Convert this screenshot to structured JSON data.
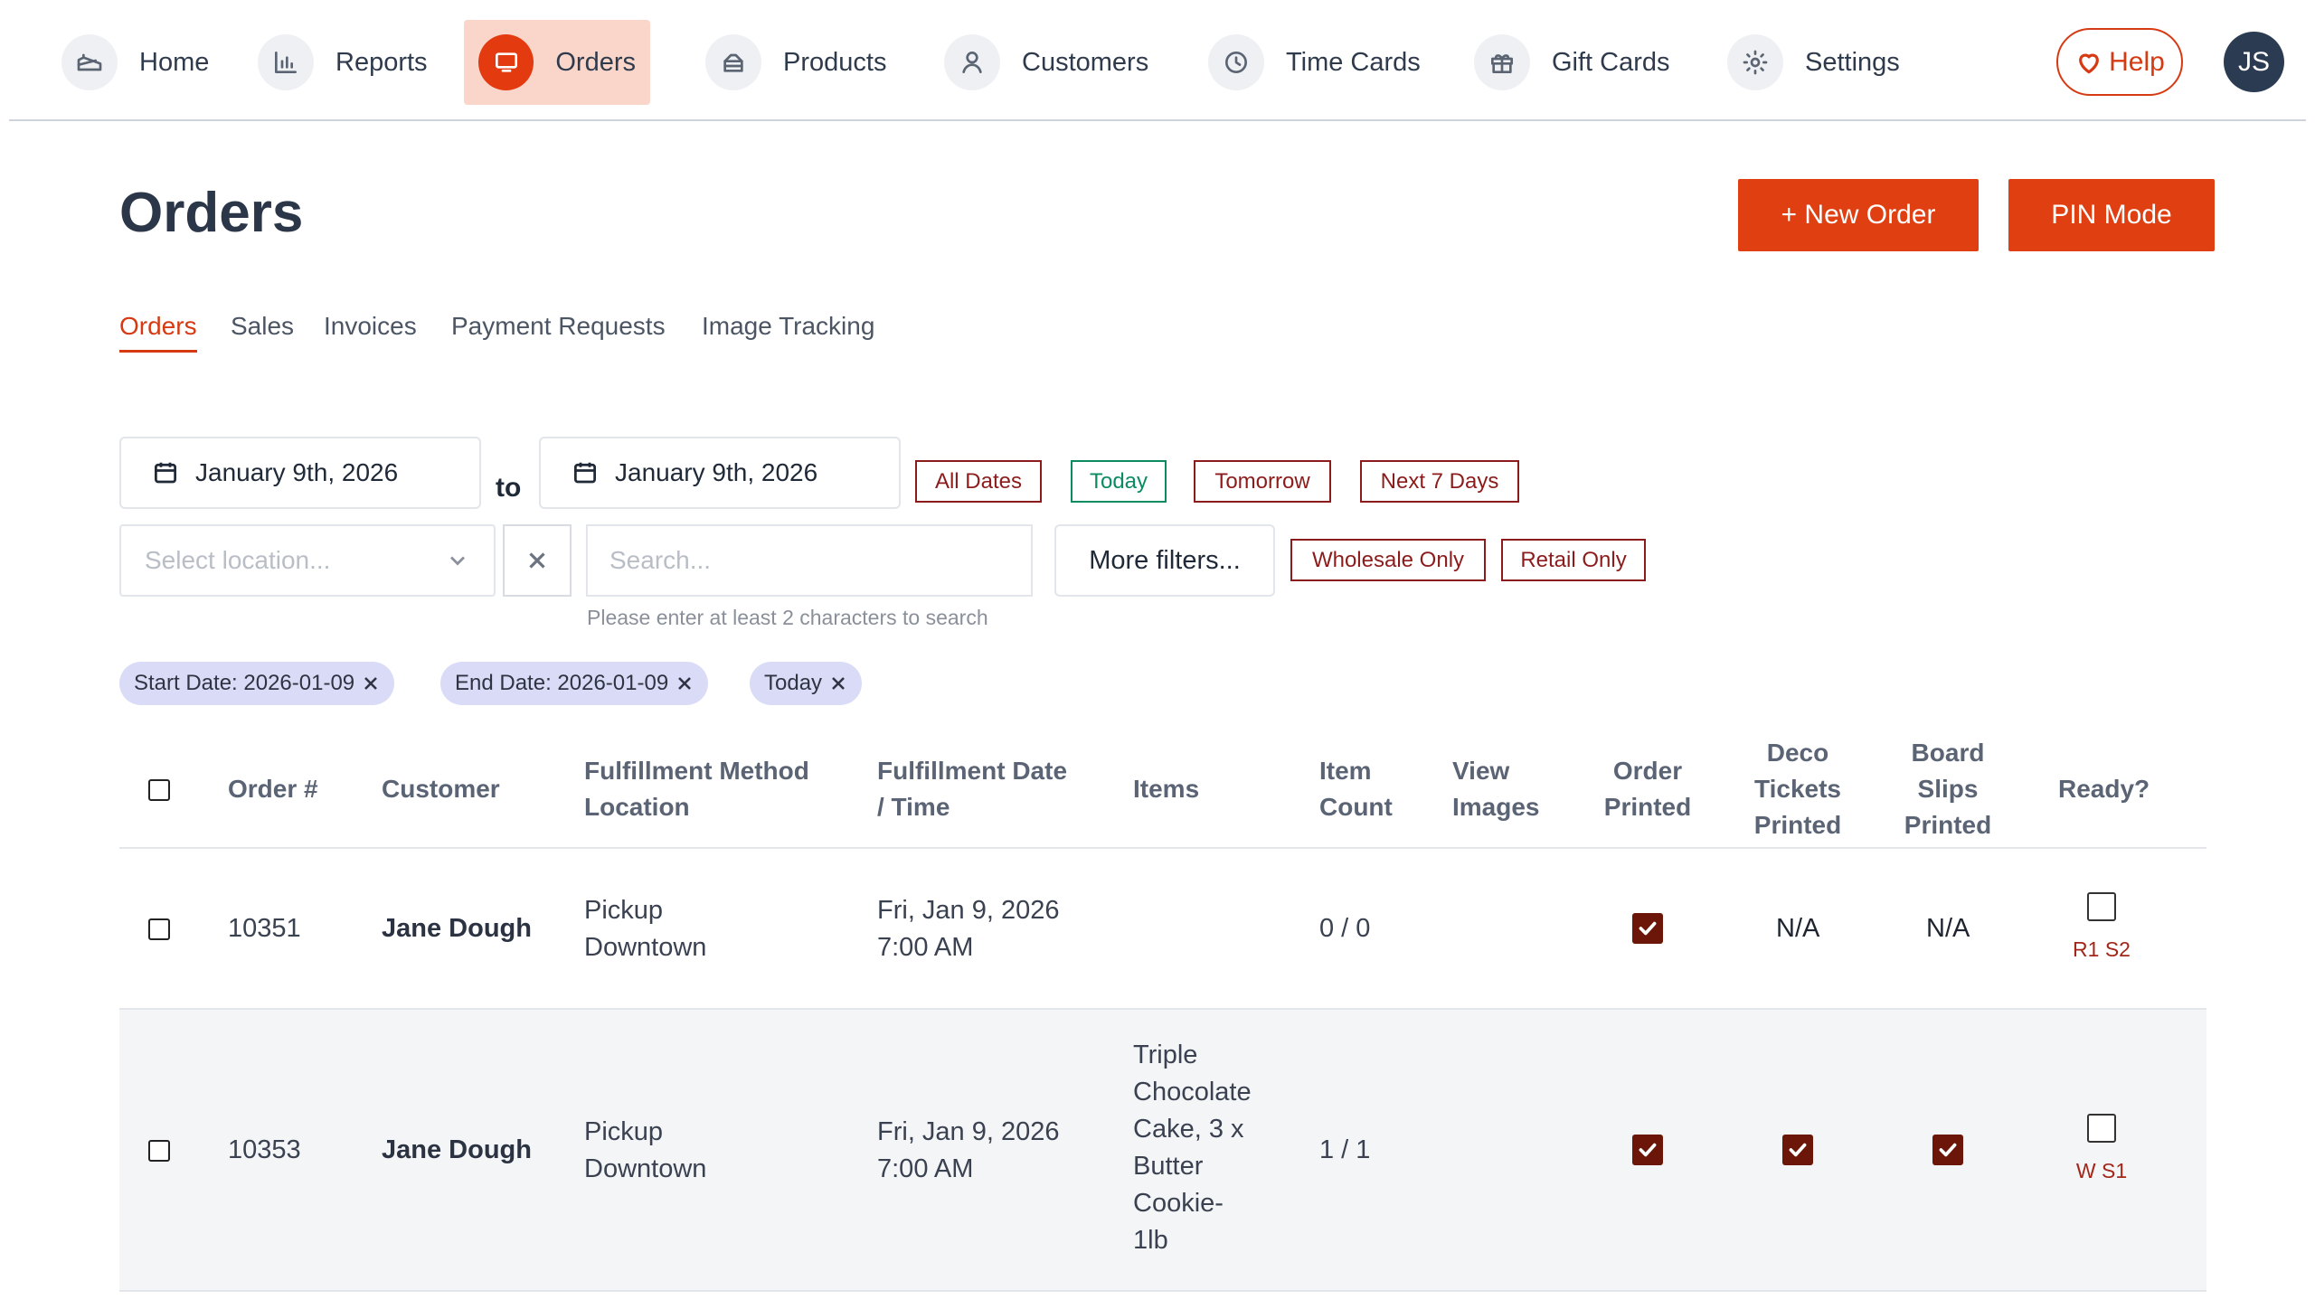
{
  "nav": {
    "items": [
      {
        "label": "Home",
        "icon": "cake-icon"
      },
      {
        "label": "Reports",
        "icon": "bar-chart-icon"
      },
      {
        "label": "Orders",
        "icon": "monitor-icon",
        "active": true
      },
      {
        "label": "Products",
        "icon": "cake-slice-icon"
      },
      {
        "label": "Customers",
        "icon": "user-icon"
      },
      {
        "label": "Time Cards",
        "icon": "clock-icon"
      },
      {
        "label": "Gift Cards",
        "icon": "gift-icon"
      },
      {
        "label": "Settings",
        "icon": "gear-icon"
      }
    ],
    "help_label": "Help",
    "avatar_initials": "JS"
  },
  "page": {
    "title": "Orders",
    "new_order_label": "+ New Order",
    "pin_mode_label": "PIN Mode"
  },
  "tabs": [
    "Orders",
    "Sales",
    "Invoices",
    "Payment Requests",
    "Image Tracking"
  ],
  "active_tab": "Orders",
  "filters": {
    "start_date": "January 9th, 2026",
    "to_label": "to",
    "end_date": "January 9th, 2026",
    "date_buttons": [
      "All Dates",
      "Today",
      "Tomorrow",
      "Next 7 Days"
    ],
    "location_placeholder": "Select location...",
    "search_placeholder": "Search...",
    "search_hint": "Please enter at least 2 characters to search",
    "more_filters_label": "More filters...",
    "type_buttons": [
      "Wholesale Only",
      "Retail Only"
    ],
    "active_chips": [
      "Start Date: 2026-01-09",
      "End Date: 2026-01-09",
      "Today"
    ]
  },
  "table": {
    "headers": {
      "order_num": "Order #",
      "customer": "Customer",
      "fulfillment_method_1": "Fulfillment Method",
      "fulfillment_method_2": "Location",
      "fulfillment_date_1": "Fulfillment Date",
      "fulfillment_date_2": "/ Time",
      "items": "Items",
      "item_count_1": "Item",
      "item_count_2": "Count",
      "view_images_1": "View",
      "view_images_2": "Images",
      "order_printed_1": "Order",
      "order_printed_2": "Printed",
      "deco_1": "Deco",
      "deco_2": "Tickets",
      "deco_3": "Printed",
      "board_1": "Board",
      "board_2": "Slips",
      "board_3": "Printed",
      "ready": "Ready?"
    },
    "rows": [
      {
        "order_num": "10351",
        "customer": "Jane Dough",
        "method": "Pickup",
        "location": "Downtown",
        "date": "Fri, Jan 9, 2026",
        "time": "7:00 AM",
        "items": [],
        "item_count": "0 / 0",
        "order_printed": true,
        "deco_printed": "N/A",
        "board_printed": "N/A",
        "ready": false,
        "ready_code": "R1 S2"
      },
      {
        "order_num": "10353",
        "customer": "Jane Dough",
        "method": "Pickup",
        "location": "Downtown",
        "date": "Fri, Jan 9, 2026",
        "time": "7:00 AM",
        "items": [
          "Triple",
          "Chocolate",
          "Cake, 3 x",
          "Butter",
          "Cookie-",
          "1lb"
        ],
        "item_count": "1 / 1",
        "order_printed": true,
        "deco_printed": true,
        "board_printed": true,
        "ready": false,
        "ready_code": "W S1"
      }
    ]
  },
  "colors": {
    "accent": "#e03f12",
    "accent_light": "#f9d6c9",
    "dark_red": "#8c1c1c",
    "green": "#0c8a62",
    "chip_bg": "#d9dbf7",
    "checked": "#6b1608"
  }
}
